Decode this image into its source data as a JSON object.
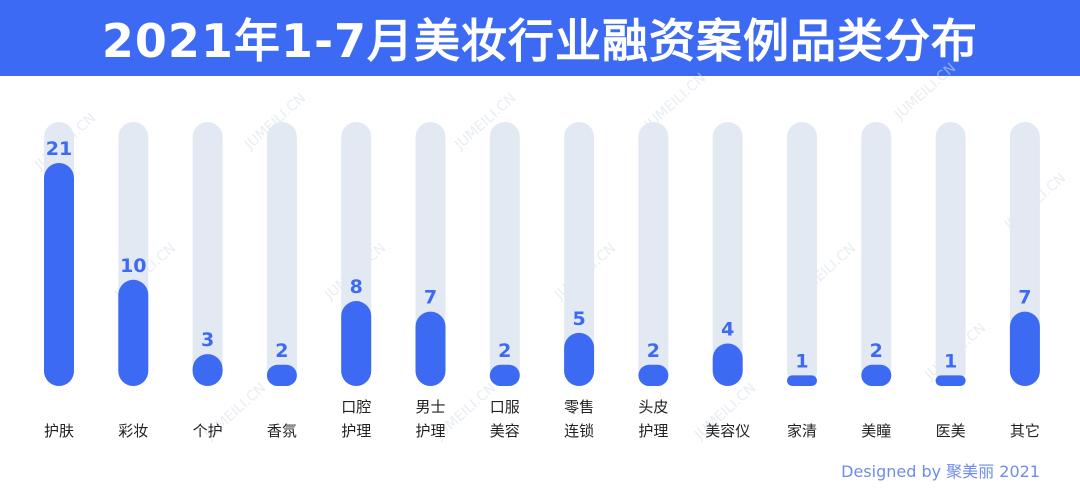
{
  "title": "2021年1-7月美妆行业融资案例品类分布",
  "credit": "Designed by 聚美丽 2021",
  "watermark": "JUMEILI.CN",
  "colors": {
    "banner": "#3d6af2",
    "bar": "#3d6af2",
    "track": "#e3e9f2",
    "value_label": "#3d6af2",
    "category_label": "#222222",
    "credit": "#6d8cf0"
  },
  "chart_data": {
    "type": "bar",
    "categories": [
      [
        "护肤"
      ],
      [
        "彩妆"
      ],
      [
        "个护"
      ],
      [
        "香氛"
      ],
      [
        "口腔",
        "护理"
      ],
      [
        "男士",
        "护理"
      ],
      [
        "口服",
        "美容"
      ],
      [
        "零售",
        "连锁"
      ],
      [
        "头皮",
        "护理"
      ],
      [
        "美容仪"
      ],
      [
        "家清"
      ],
      [
        "美瞳"
      ],
      [
        "医美"
      ],
      [
        "其它"
      ]
    ],
    "values": [
      21,
      10,
      3,
      2,
      8,
      7,
      2,
      5,
      2,
      4,
      1,
      2,
      1,
      7
    ],
    "ylim": [
      0,
      21
    ],
    "grid": false,
    "legend": "none"
  }
}
